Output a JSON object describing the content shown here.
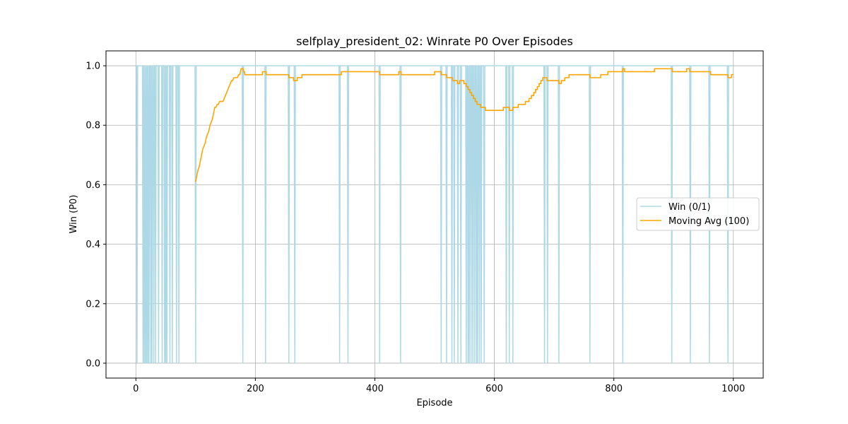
{
  "chart_data": {
    "type": "line",
    "title": "selfplay_president_02: Winrate P0 Over Episodes",
    "xlabel": "Episode",
    "ylabel": "Win (P0)",
    "xlim": [
      -50,
      1050
    ],
    "ylim": [
      -0.05,
      1.05
    ],
    "xticks": [
      0,
      200,
      400,
      600,
      800,
      1000
    ],
    "yticks": [
      0.0,
      0.2,
      0.4,
      0.6,
      0.8,
      1.0
    ],
    "xtick_labels": [
      "0",
      "200",
      "400",
      "600",
      "800",
      "1000"
    ],
    "ytick_labels": [
      "0.0",
      "0.2",
      "0.4",
      "0.6",
      "0.8",
      "1.0"
    ],
    "grid": true,
    "legend_position": "center-right",
    "series": [
      {
        "name": "Win (0/1)",
        "color": "#add8e6",
        "kind": "binary",
        "episodes_x": [
          0,
          999
        ],
        "loss_episodes": [
          2,
          12,
          14,
          16,
          18,
          20,
          22,
          25,
          27,
          30,
          33,
          38,
          44,
          48,
          50,
          52,
          57,
          61,
          68,
          72,
          100,
          179,
          217,
          256,
          266,
          341,
          355,
          408,
          443,
          511,
          520,
          529,
          533,
          539,
          544,
          553,
          556,
          558,
          561,
          564,
          567,
          570,
          572,
          575,
          578,
          583,
          620,
          625,
          631,
          684,
          689,
          708,
          760,
          815,
          897,
          928,
          960,
          991
        ]
      },
      {
        "name": "Moving Avg (100)",
        "color": "#ffa500",
        "kind": "step",
        "x": [
          100,
          102,
          104,
          106,
          108,
          110,
          112,
          114,
          116,
          118,
          120,
          122,
          124,
          126,
          128,
          130,
          132,
          134,
          136,
          138,
          140,
          142,
          144,
          146,
          148,
          150,
          152,
          154,
          156,
          158,
          160,
          162,
          164,
          166,
          168,
          170,
          172,
          174,
          176,
          178,
          180,
          182,
          212,
          216,
          218,
          256,
          258,
          264,
          267,
          270,
          278,
          318,
          341,
          344,
          362,
          408,
          411,
          440,
          444,
          500,
          511,
          520,
          530,
          534,
          538,
          542,
          545,
          549,
          553,
          556,
          559,
          562,
          565,
          568,
          571,
          574,
          577,
          580,
          585,
          592,
          615,
          620,
          625,
          631,
          634,
          640,
          652,
          658,
          662,
          666,
          669,
          672,
          675,
          678,
          681,
          688,
          700,
          708,
          712,
          718,
          725,
          738,
          760,
          778,
          790,
          810,
          815,
          818,
          868,
          898,
          912,
          922,
          927,
          935,
          962,
          991,
          997,
          1000
        ],
        "y": [
          0.61,
          0.63,
          0.65,
          0.66,
          0.68,
          0.7,
          0.72,
          0.73,
          0.74,
          0.76,
          0.77,
          0.78,
          0.8,
          0.81,
          0.82,
          0.84,
          0.86,
          0.86,
          0.87,
          0.87,
          0.88,
          0.88,
          0.88,
          0.88,
          0.89,
          0.9,
          0.91,
          0.92,
          0.93,
          0.94,
          0.95,
          0.95,
          0.96,
          0.96,
          0.96,
          0.96,
          0.97,
          0.97,
          0.99,
          0.99,
          0.98,
          0.97,
          0.98,
          0.98,
          0.97,
          0.96,
          0.96,
          0.95,
          0.95,
          0.96,
          0.97,
          0.97,
          0.97,
          0.98,
          0.98,
          0.97,
          0.97,
          0.98,
          0.97,
          0.98,
          0.97,
          0.96,
          0.95,
          0.95,
          0.94,
          0.95,
          0.95,
          0.94,
          0.93,
          0.92,
          0.91,
          0.9,
          0.89,
          0.88,
          0.87,
          0.87,
          0.86,
          0.86,
          0.85,
          0.85,
          0.86,
          0.86,
          0.85,
          0.86,
          0.86,
          0.87,
          0.88,
          0.89,
          0.9,
          0.91,
          0.92,
          0.93,
          0.94,
          0.95,
          0.96,
          0.95,
          0.95,
          0.94,
          0.95,
          0.96,
          0.97,
          0.97,
          0.96,
          0.97,
          0.98,
          0.98,
          0.99,
          0.98,
          0.99,
          0.98,
          0.98,
          0.99,
          0.98,
          0.98,
          0.97,
          0.96,
          0.97,
          0.97
        ]
      }
    ]
  }
}
